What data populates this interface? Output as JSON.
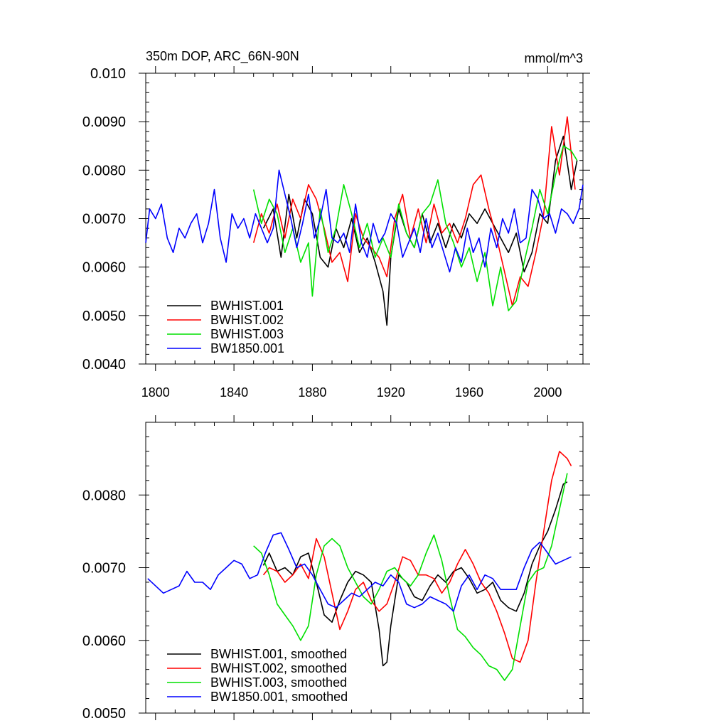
{
  "chart_data": [
    {
      "type": "line",
      "title": "350m DOP, ARC_66N-90N",
      "units": "mmol/m^3",
      "xlim": [
        1795,
        2018
      ],
      "ylim": [
        0.004,
        0.01
      ],
      "xticks": [
        1800,
        1840,
        1880,
        1920,
        1960,
        2000
      ],
      "xtick_labels": [
        "1800",
        "1840",
        "1880",
        "1920",
        "1960",
        "2000"
      ],
      "yticks": [
        0.004,
        0.005,
        0.006,
        0.007,
        0.008,
        0.009,
        0.01
      ],
      "ytick_labels": [
        "0.0040",
        "0.0050",
        "0.0060",
        "0.0070",
        "0.0080",
        "0.0090",
        "0.010"
      ],
      "legend_position": "bottom-left",
      "series": [
        {
          "name": "BWHIST.001",
          "color": "#000000",
          "x": [
            1855,
            1860,
            1864,
            1868,
            1872,
            1876,
            1880,
            1884,
            1888,
            1892,
            1896,
            1900,
            1904,
            1908,
            1912,
            1916,
            1918,
            1920,
            1924,
            1928,
            1932,
            1936,
            1940,
            1944,
            1948,
            1952,
            1956,
            1960,
            1964,
            1968,
            1972,
            1976,
            1980,
            1984,
            1988,
            1992,
            1996,
            2000,
            2004,
            2008,
            2012,
            2015
          ],
          "y": [
            0.0068,
            0.0072,
            0.0062,
            0.0075,
            0.0066,
            0.0074,
            0.0071,
            0.0062,
            0.006,
            0.0068,
            0.0064,
            0.007,
            0.0063,
            0.0066,
            0.0061,
            0.0055,
            0.0048,
            0.0062,
            0.0072,
            0.0067,
            0.0064,
            0.0071,
            0.0065,
            0.0069,
            0.0064,
            0.0069,
            0.0066,
            0.0071,
            0.0069,
            0.0072,
            0.0069,
            0.0066,
            0.0063,
            0.0067,
            0.0059,
            0.0063,
            0.0071,
            0.0069,
            0.0082,
            0.0087,
            0.0076,
            0.0082
          ]
        },
        {
          "name": "BWHIST.002",
          "color": "#ff0000",
          "x": [
            1850,
            1854,
            1858,
            1862,
            1866,
            1870,
            1874,
            1878,
            1882,
            1886,
            1890,
            1894,
            1898,
            1902,
            1906,
            1910,
            1914,
            1918,
            1922,
            1926,
            1930,
            1934,
            1938,
            1942,
            1946,
            1950,
            1954,
            1958,
            1962,
            1966,
            1970,
            1974,
            1978,
            1982,
            1986,
            1990,
            1994,
            1998,
            2002,
            2006,
            2010,
            2014
          ],
          "y": [
            0.0065,
            0.0071,
            0.0067,
            0.0073,
            0.0066,
            0.0074,
            0.007,
            0.0077,
            0.0074,
            0.0068,
            0.0061,
            0.0063,
            0.0057,
            0.0071,
            0.0066,
            0.0064,
            0.0062,
            0.0058,
            0.007,
            0.0075,
            0.0066,
            0.0072,
            0.0065,
            0.0073,
            0.0067,
            0.0069,
            0.0065,
            0.007,
            0.0077,
            0.0079,
            0.0072,
            0.0066,
            0.0059,
            0.0052,
            0.0058,
            0.0056,
            0.0063,
            0.0071,
            0.0089,
            0.0079,
            0.0091,
            0.0076
          ]
        },
        {
          "name": "BWHIST.003",
          "color": "#00e000",
          "x": [
            1850,
            1854,
            1858,
            1862,
            1866,
            1870,
            1874,
            1878,
            1880,
            1884,
            1888,
            1892,
            1896,
            1900,
            1904,
            1908,
            1912,
            1916,
            1920,
            1924,
            1928,
            1932,
            1936,
            1940,
            1944,
            1948,
            1952,
            1956,
            1960,
            1964,
            1968,
            1972,
            1976,
            1980,
            1984,
            1988,
            1992,
            1996,
            2000,
            2004,
            2008,
            2012,
            2015
          ],
          "y": [
            0.0076,
            0.0069,
            0.0074,
            0.0071,
            0.0063,
            0.0068,
            0.0061,
            0.0065,
            0.0054,
            0.0072,
            0.0063,
            0.0068,
            0.0077,
            0.0071,
            0.0064,
            0.0069,
            0.0062,
            0.0066,
            0.0062,
            0.0073,
            0.0067,
            0.0064,
            0.0071,
            0.0073,
            0.0078,
            0.0069,
            0.0065,
            0.006,
            0.0064,
            0.0057,
            0.0063,
            0.0052,
            0.006,
            0.0051,
            0.0053,
            0.0061,
            0.0068,
            0.0076,
            0.0071,
            0.0079,
            0.0085,
            0.0084,
            0.0082
          ]
        },
        {
          "name": "BW1850.001",
          "color": "#0000ff",
          "x": [
            1795,
            1797,
            1800,
            1803,
            1806,
            1809,
            1812,
            1815,
            1818,
            1821,
            1824,
            1827,
            1830,
            1833,
            1836,
            1839,
            1842,
            1845,
            1848,
            1851,
            1854,
            1857,
            1860,
            1863,
            1866,
            1869,
            1872,
            1875,
            1878,
            1881,
            1884,
            1887,
            1890,
            1893,
            1896,
            1899,
            1902,
            1905,
            1908,
            1911,
            1914,
            1917,
            1920,
            1923,
            1926,
            1929,
            1932,
            1935,
            1938,
            1941,
            1944,
            1947,
            1950,
            1953,
            1956,
            1959,
            1962,
            1965,
            1968,
            1971,
            1974,
            1977,
            1980,
            1983,
            1986,
            1989,
            1992,
            1995,
            1998,
            2001,
            2004,
            2007,
            2010,
            2013,
            2016,
            2018
          ],
          "y": [
            0.0065,
            0.0072,
            0.007,
            0.0073,
            0.0066,
            0.0063,
            0.0068,
            0.0066,
            0.0069,
            0.0071,
            0.0065,
            0.0069,
            0.0076,
            0.0066,
            0.0061,
            0.0071,
            0.0068,
            0.007,
            0.0066,
            0.0071,
            0.0068,
            0.0065,
            0.0068,
            0.008,
            0.0075,
            0.007,
            0.0064,
            0.0069,
            0.0075,
            0.0066,
            0.007,
            0.0076,
            0.0066,
            0.0065,
            0.0067,
            0.0063,
            0.0073,
            0.0065,
            0.0062,
            0.0069,
            0.0065,
            0.0067,
            0.0071,
            0.0069,
            0.0062,
            0.0065,
            0.0068,
            0.0063,
            0.007,
            0.0064,
            0.0067,
            0.0063,
            0.0059,
            0.0064,
            0.0061,
            0.0068,
            0.0063,
            0.0066,
            0.006,
            0.0068,
            0.0064,
            0.007,
            0.0067,
            0.0072,
            0.0065,
            0.0066,
            0.0076,
            0.0074,
            0.007,
            0.0071,
            0.0067,
            0.0072,
            0.0071,
            0.0069,
            0.0072,
            0.0077
          ]
        }
      ]
    },
    {
      "type": "line",
      "xlim": [
        1795,
        2018
      ],
      "ylim": [
        0.005,
        0.009
      ],
      "xticks": [
        1800,
        1840,
        1880,
        1920,
        1960,
        2000
      ],
      "yticks": [
        0.005,
        0.006,
        0.007,
        0.008
      ],
      "ytick_labels": [
        "0.0050",
        "0.0060",
        "0.0070",
        "0.0080"
      ],
      "legend_position": "bottom-left",
      "series": [
        {
          "name": "BWHIST.001, smoothed",
          "color": "#000000",
          "x": [
            1855,
            1858,
            1862,
            1866,
            1870,
            1874,
            1878,
            1882,
            1886,
            1890,
            1894,
            1898,
            1902,
            1906,
            1910,
            1914,
            1916,
            1918,
            1920,
            1924,
            1928,
            1932,
            1936,
            1940,
            1944,
            1948,
            1952,
            1956,
            1960,
            1964,
            1968,
            1972,
            1976,
            1980,
            1984,
            1988,
            1992,
            1996,
            2000,
            2004,
            2008,
            2010
          ],
          "y": [
            0.00703,
            0.0072,
            0.00695,
            0.007,
            0.0069,
            0.00715,
            0.0072,
            0.0068,
            0.00635,
            0.00625,
            0.00655,
            0.0068,
            0.00695,
            0.0069,
            0.0068,
            0.00615,
            0.00565,
            0.0057,
            0.0062,
            0.0069,
            0.0068,
            0.0066,
            0.00655,
            0.00675,
            0.0069,
            0.0068,
            0.00695,
            0.007,
            0.00685,
            0.00665,
            0.0067,
            0.0068,
            0.00655,
            0.00645,
            0.0064,
            0.00665,
            0.00705,
            0.0073,
            0.0075,
            0.0078,
            0.00815,
            0.00818
          ]
        },
        {
          "name": "BWHIST.002, smoothed",
          "color": "#ff0000",
          "x": [
            1855,
            1858,
            1862,
            1866,
            1870,
            1874,
            1878,
            1882,
            1886,
            1890,
            1894,
            1898,
            1902,
            1906,
            1910,
            1914,
            1918,
            1922,
            1926,
            1930,
            1934,
            1938,
            1942,
            1946,
            1950,
            1954,
            1958,
            1962,
            1966,
            1970,
            1974,
            1978,
            1982,
            1986,
            1990,
            1994,
            1998,
            2002,
            2006,
            2010,
            2012
          ],
          "y": [
            0.0069,
            0.007,
            0.00695,
            0.0068,
            0.0069,
            0.00705,
            0.00685,
            0.0074,
            0.00715,
            0.00665,
            0.00615,
            0.0064,
            0.0067,
            0.0068,
            0.00655,
            0.0064,
            0.0065,
            0.0068,
            0.00715,
            0.0071,
            0.0069,
            0.0069,
            0.00685,
            0.00665,
            0.0068,
            0.00705,
            0.00725,
            0.00705,
            0.0068,
            0.00665,
            0.0064,
            0.0061,
            0.00575,
            0.0057,
            0.006,
            0.0068,
            0.0075,
            0.0082,
            0.0086,
            0.0085,
            0.0084
          ]
        },
        {
          "name": "BWHIST.003, smoothed",
          "color": "#00e000",
          "x": [
            1850,
            1854,
            1858,
            1862,
            1866,
            1870,
            1874,
            1878,
            1882,
            1886,
            1890,
            1894,
            1898,
            1902,
            1906,
            1910,
            1914,
            1918,
            1922,
            1926,
            1930,
            1934,
            1938,
            1942,
            1946,
            1950,
            1954,
            1958,
            1962,
            1966,
            1970,
            1974,
            1978,
            1982,
            1986,
            1990,
            1994,
            1998,
            2002,
            2006,
            2010
          ],
          "y": [
            0.0073,
            0.0072,
            0.0069,
            0.0065,
            0.00635,
            0.0062,
            0.006,
            0.0062,
            0.0069,
            0.0073,
            0.0074,
            0.0073,
            0.007,
            0.0068,
            0.0066,
            0.0065,
            0.0067,
            0.00695,
            0.007,
            0.00685,
            0.00675,
            0.0069,
            0.0072,
            0.00745,
            0.0071,
            0.0066,
            0.00615,
            0.00605,
            0.0059,
            0.0058,
            0.00565,
            0.0056,
            0.00545,
            0.0056,
            0.0062,
            0.0068,
            0.00695,
            0.007,
            0.0073,
            0.0078,
            0.0083
          ]
        },
        {
          "name": "BW1850.001, smoothed",
          "color": "#0000ff",
          "x": [
            1796,
            1800,
            1804,
            1808,
            1812,
            1816,
            1820,
            1824,
            1828,
            1832,
            1836,
            1840,
            1844,
            1848,
            1852,
            1856,
            1860,
            1864,
            1868,
            1872,
            1876,
            1880,
            1884,
            1888,
            1892,
            1896,
            1900,
            1904,
            1908,
            1912,
            1916,
            1920,
            1924,
            1928,
            1932,
            1936,
            1940,
            1944,
            1948,
            1952,
            1956,
            1960,
            1964,
            1968,
            1972,
            1976,
            1980,
            1984,
            1988,
            1992,
            1996,
            2000,
            2004,
            2008,
            2012
          ],
          "y": [
            0.00685,
            0.00675,
            0.00665,
            0.0067,
            0.00675,
            0.00695,
            0.0068,
            0.0068,
            0.0067,
            0.0069,
            0.007,
            0.0071,
            0.00705,
            0.00685,
            0.0069,
            0.0072,
            0.00745,
            0.00748,
            0.00725,
            0.007,
            0.00705,
            0.0069,
            0.0067,
            0.0065,
            0.00645,
            0.00655,
            0.00665,
            0.0066,
            0.0067,
            0.0068,
            0.00675,
            0.0069,
            0.0068,
            0.0065,
            0.00645,
            0.0065,
            0.0066,
            0.00655,
            0.0065,
            0.0064,
            0.00675,
            0.0069,
            0.0067,
            0.0069,
            0.00685,
            0.0067,
            0.0067,
            0.0067,
            0.007,
            0.00725,
            0.00735,
            0.0072,
            0.00705,
            0.0071,
            0.00715
          ]
        }
      ]
    }
  ]
}
